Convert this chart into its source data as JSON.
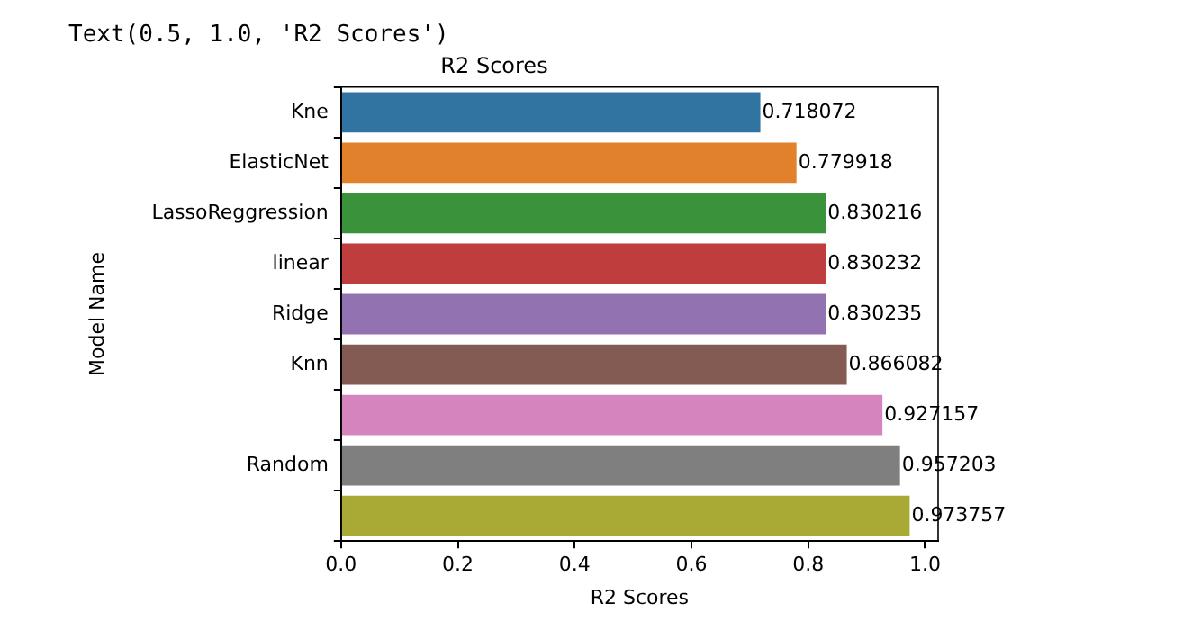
{
  "chart_data": {
    "type": "bar",
    "orientation": "horizontal",
    "title": "R2 Scores",
    "xlabel": "R2 Scores",
    "ylabel": "Model Name",
    "annotations": [
      "Text(0.5, 1.0, 'R2 Scores')"
    ],
    "categories": [
      "Kne",
      "ElasticNet",
      "LassoReggression",
      "linear",
      "Ridge",
      "Knn",
      null,
      "Random",
      null
    ],
    "values": [
      0.718072,
      0.779918,
      0.830216,
      0.830232,
      0.830235,
      0.866082,
      0.927157,
      0.957203,
      0.973757
    ],
    "colors": [
      "#3274a1",
      "#e1812c",
      "#3a923a",
      "#c03d3e",
      "#9372b2",
      "#845b53",
      "#d684bd",
      "#7f7f7f",
      "#a9aa35"
    ],
    "xlim": [
      0,
      1.0225
    ],
    "xticks": [
      {
        "value": 0,
        "label": "0.0"
      },
      {
        "value": 0.2,
        "label": "0.2"
      },
      {
        "value": 0.4,
        "label": "0.4"
      },
      {
        "value": 0.6,
        "label": "0.6"
      },
      {
        "value": 0.8,
        "label": "0.8"
      },
      {
        "value": 1,
        "label": "1.0"
      }
    ],
    "grid": false,
    "data_labels": true
  }
}
